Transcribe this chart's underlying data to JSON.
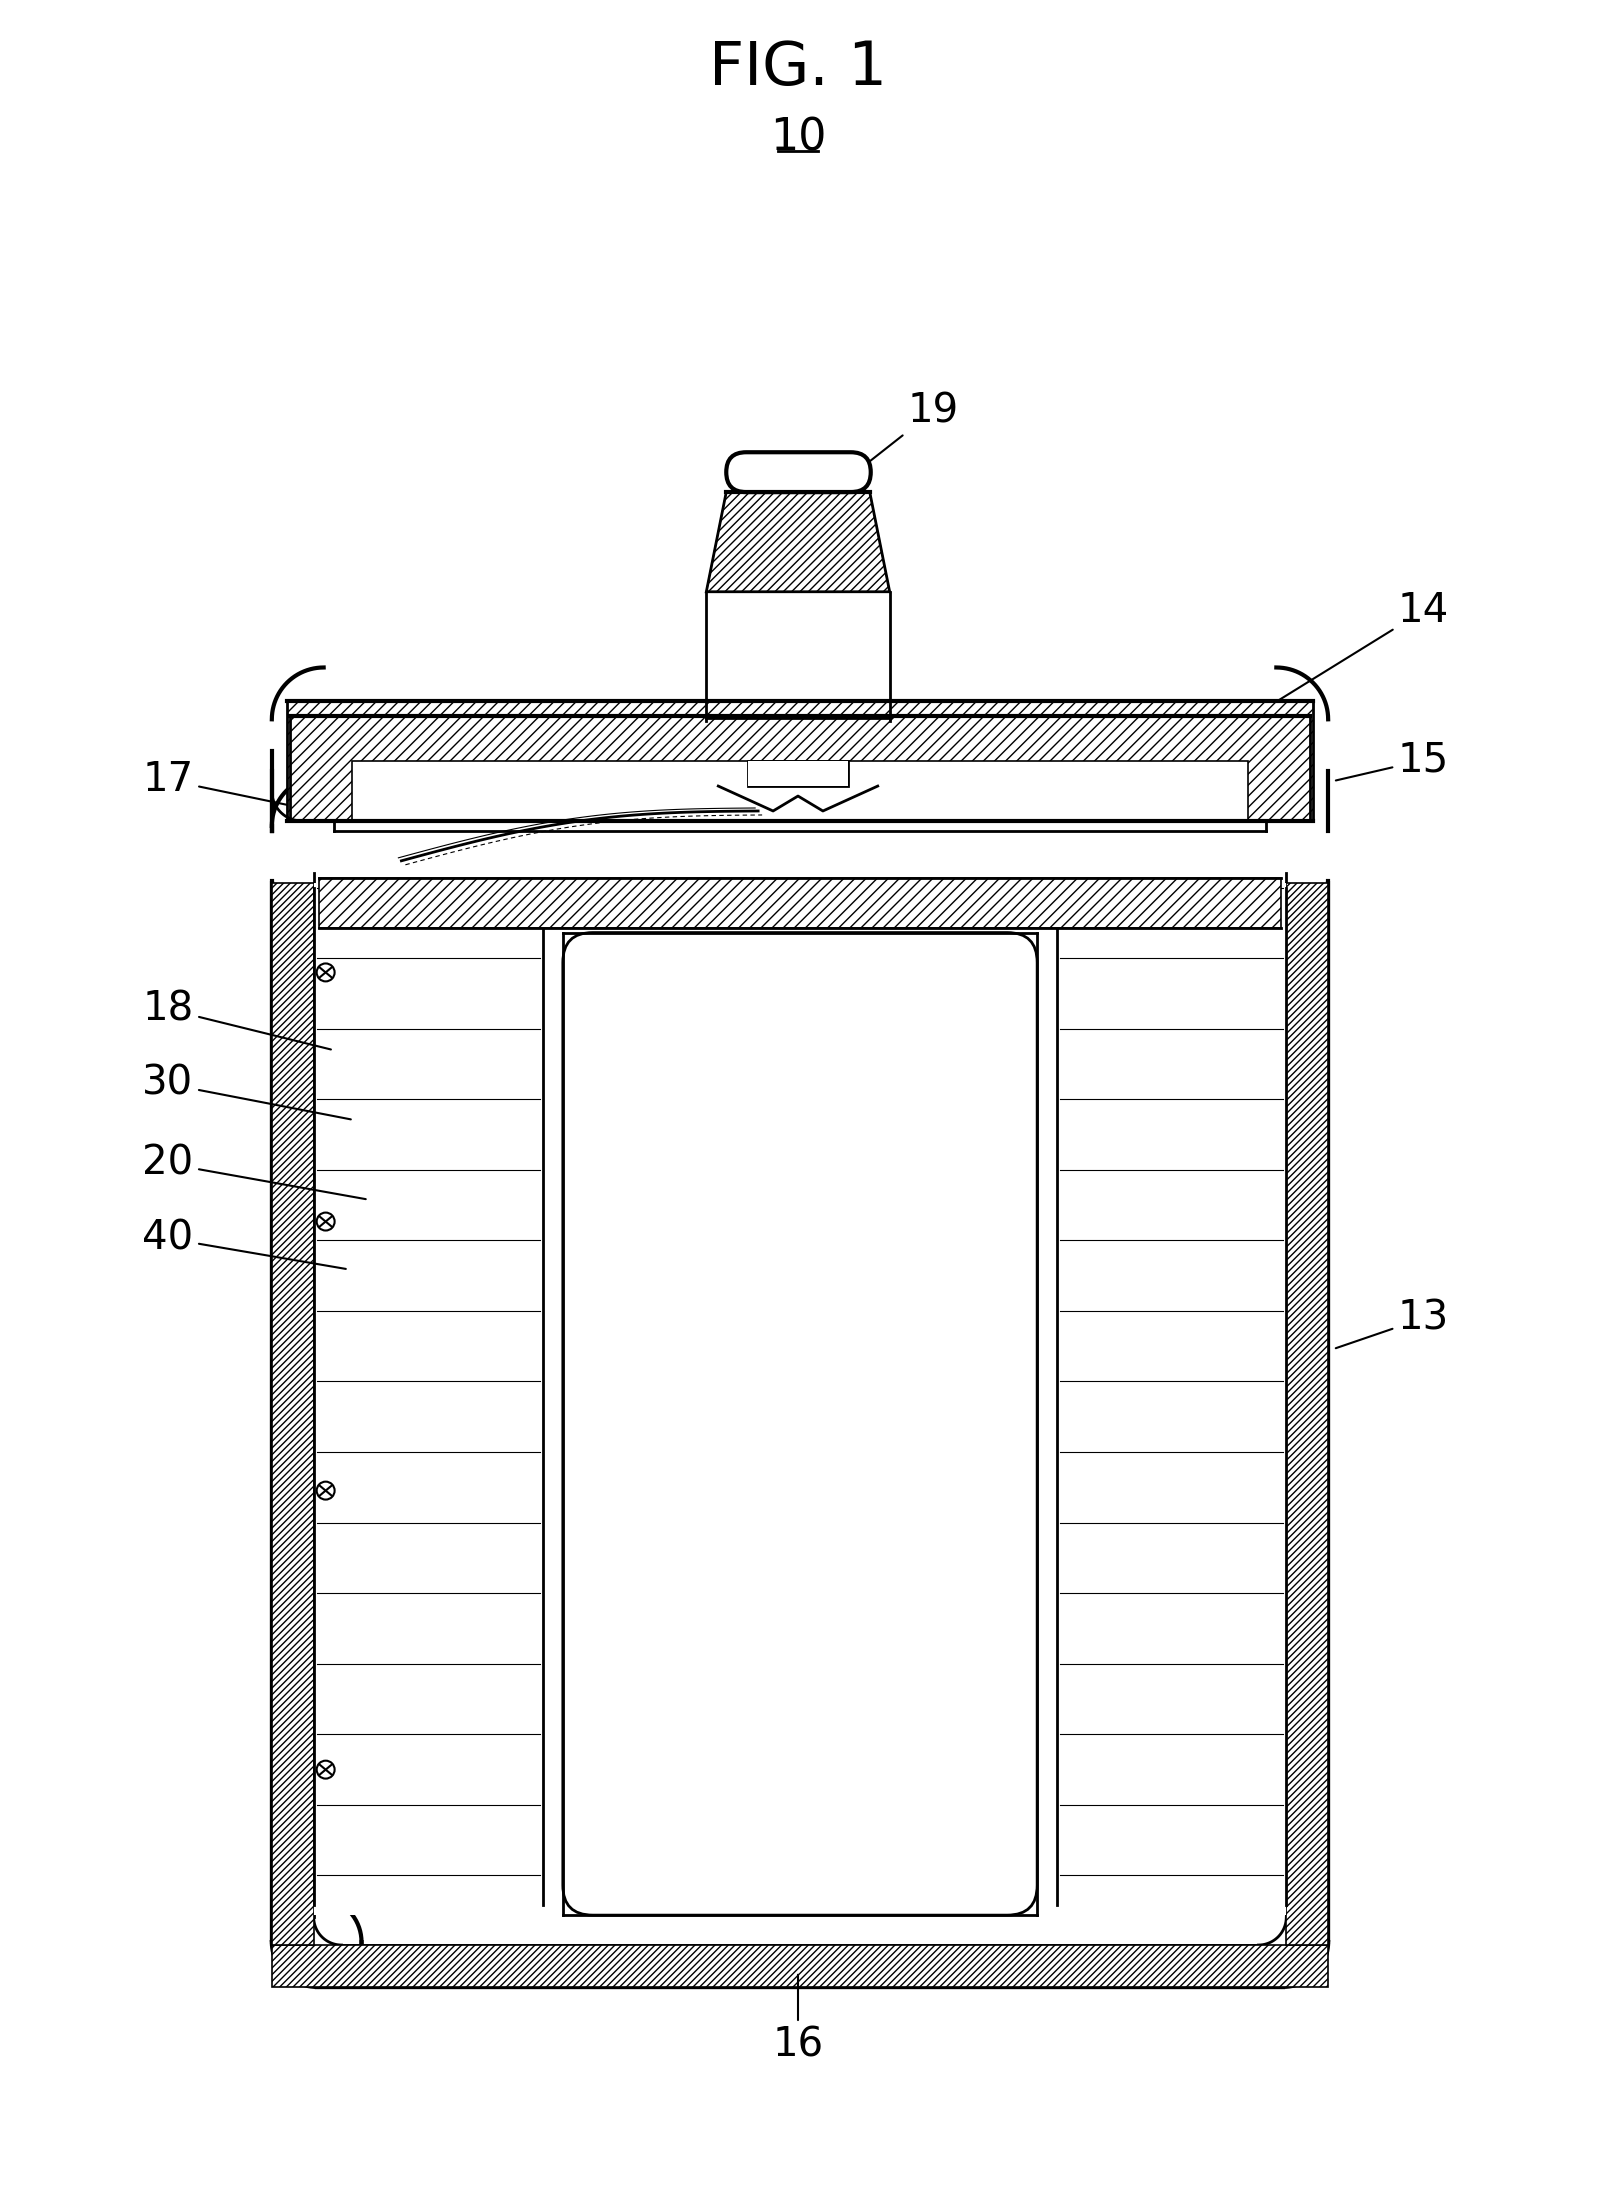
{
  "title": "FIG. 1",
  "label_10": "10",
  "label_19": "19",
  "label_14": "14",
  "label_17": "17",
  "label_15": "15",
  "label_18": "18",
  "label_30": "30",
  "label_20": "20",
  "label_40": "40",
  "label_13": "13",
  "label_16": "16",
  "bg_color": "#ffffff",
  "line_color": "#000000",
  "figsize": [
    15.97,
    21.87
  ],
  "dpi": 100
}
